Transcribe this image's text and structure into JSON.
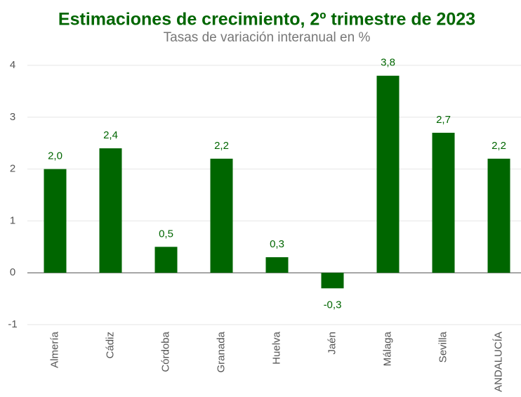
{
  "chart_data": {
    "type": "bar",
    "title": "Estimaciones de crecimiento, 2º trimestre de 2023",
    "subtitle": "Tasas de variación interanual en %",
    "categories": [
      "Almería",
      "Cádiz",
      "Córdoba",
      "Granada",
      "Huelva",
      "Jaén",
      "Málaga",
      "Sevilla",
      "ANDALUCÍA"
    ],
    "values": [
      2.0,
      2.4,
      0.5,
      2.2,
      0.3,
      -0.3,
      3.8,
      2.7,
      2.2
    ],
    "value_labels": [
      "2,0",
      "2,4",
      "0,5",
      "2,2",
      "0,3",
      "-0,3",
      "3,8",
      "2,7",
      "2,2"
    ],
    "color": "#006600",
    "ylim": [
      -1,
      4
    ],
    "yticks": [
      -1,
      0,
      1,
      2,
      3,
      4
    ],
    "grid": true
  }
}
